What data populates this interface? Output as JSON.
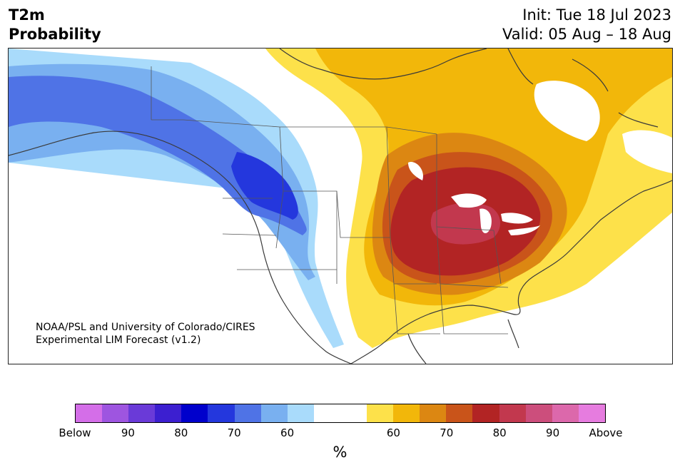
{
  "header": {
    "variable": "T2m",
    "product": "Probability",
    "init": "Init: Tue 18 Jul 2023",
    "valid": "Valid: 05 Aug – 18 Aug"
  },
  "map": {
    "credit_line1": "NOAA/PSL and University of Colorado/CIRES",
    "credit_line2": "Experimental LIM Forecast (v1.2)"
  },
  "colorbar": {
    "colors": [
      "#d46ee8",
      "#9e55e0",
      "#6a3ad8",
      "#3c1fd0",
      "#0000cc",
      "#2437dd",
      "#4f73e6",
      "#79b0f0",
      "#a9dbfb",
      "#ffffff",
      "#ffffff",
      "#fde14a",
      "#f2b70a",
      "#dc8712",
      "#c9541a",
      "#b22424",
      "#c2384e",
      "#cc4e7c",
      "#dc68ab",
      "#e67cdf"
    ],
    "labels": [
      "Below",
      "90",
      "80",
      "70",
      "60",
      "60",
      "70",
      "80",
      "90",
      "Above"
    ],
    "unit": "%"
  }
}
